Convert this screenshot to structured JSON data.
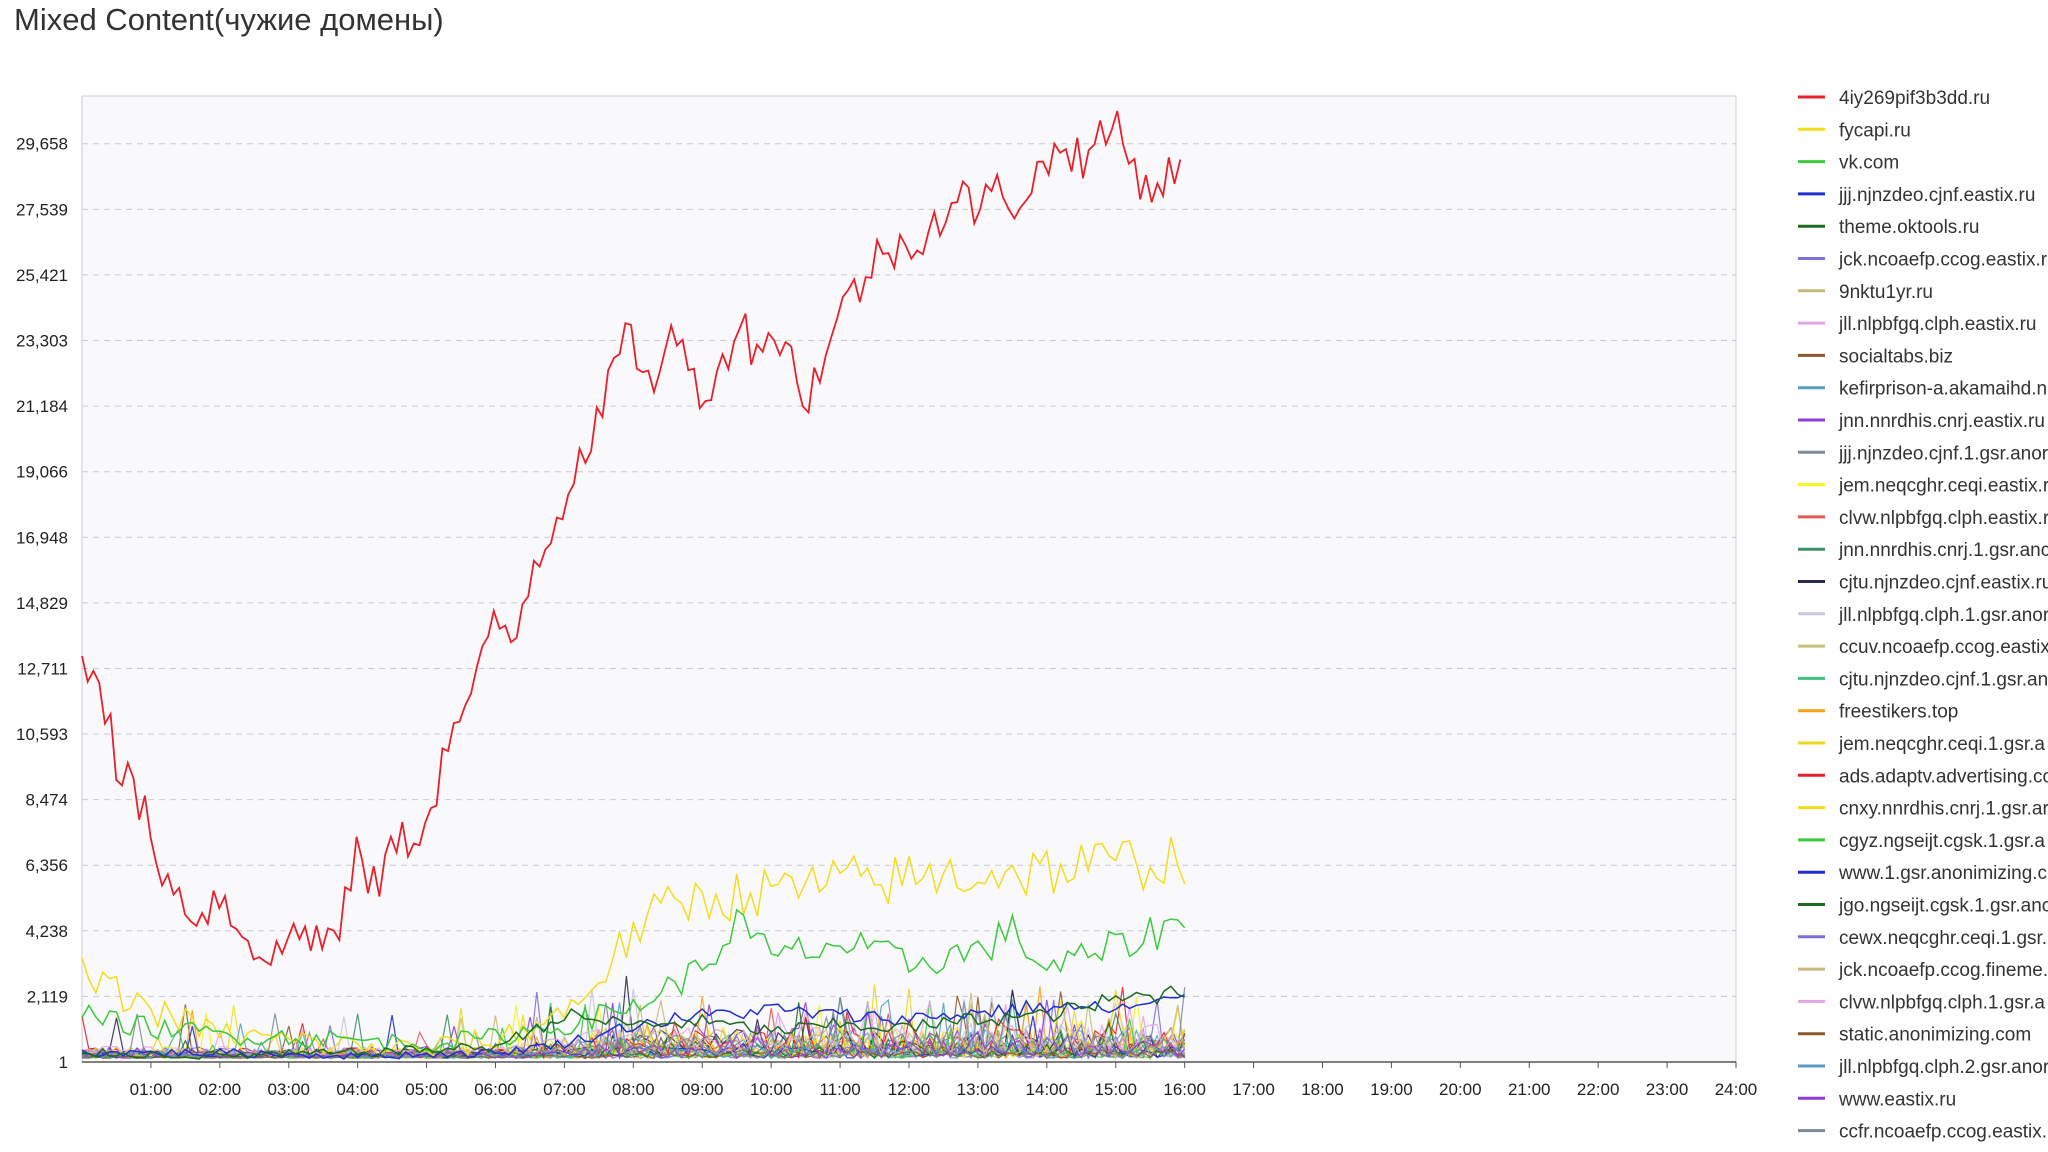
{
  "page": {
    "title": "Mixed Content(чужие домены)"
  },
  "chart_data": {
    "type": "line",
    "title": "Mixed Content(чужие домены)",
    "xlabel": "",
    "ylabel": "",
    "x_ticks": [
      "01:00",
      "02:00",
      "03:00",
      "04:00",
      "05:00",
      "06:00",
      "07:00",
      "08:00",
      "09:00",
      "10:00",
      "11:00",
      "12:00",
      "13:00",
      "14:00",
      "15:00",
      "16:00",
      "17:00",
      "18:00",
      "19:00",
      "20:00",
      "21:00",
      "22:00",
      "23:00",
      "24:00"
    ],
    "y_ticks": [
      "1",
      "2,119",
      "4,238",
      "6,356",
      "8,474",
      "10,593",
      "12,711",
      "14,829",
      "16,948",
      "19,066",
      "21,184",
      "23,303",
      "25,421",
      "27,539",
      "29,658"
    ],
    "xlim_hours": [
      0,
      24
    ],
    "ylim": [
      1,
      31200
    ],
    "grid": "horizontal dashed",
    "legend_position": "right",
    "main_series": {
      "name": "4iy269pif3b3dd.ru",
      "color": "#e8202a",
      "x": [
        0,
        0.25,
        0.5,
        0.75,
        1,
        1.25,
        1.5,
        1.75,
        2,
        2.25,
        2.5,
        2.75,
        3,
        3.25,
        3.5,
        3.75,
        4,
        4.25,
        4.5,
        4.75,
        5,
        5.25,
        5.5,
        5.75,
        6,
        6.25,
        6.5,
        6.75,
        7,
        7.25,
        7.5,
        7.75,
        8,
        8.25,
        8.5,
        8.75,
        9,
        9.25,
        9.5,
        9.75,
        10,
        10.25,
        10.5,
        10.75,
        11,
        11.25,
        11.5,
        11.75,
        12,
        12.25,
        12.5,
        12.75,
        13,
        13.25,
        13.5,
        13.75,
        14,
        14.25,
        14.5,
        14.75,
        15,
        15.25,
        15.5,
        15.75,
        16
      ],
      "y": [
        13000,
        12700,
        9500,
        8800,
        7400,
        5800,
        5100,
        4800,
        5400,
        4400,
        3900,
        3100,
        4100,
        4300,
        3900,
        4200,
        6900,
        5500,
        7000,
        7200,
        7800,
        9800,
        11300,
        12300,
        14400,
        13500,
        15800,
        17000,
        18200,
        19900,
        20500,
        22800,
        23400,
        21600,
        23700,
        22600,
        21700,
        22100,
        24100,
        23100,
        23600,
        22900,
        21400,
        22700,
        24200,
        25000,
        25900,
        26200,
        26500,
        26900,
        27400,
        27900,
        27600,
        28100,
        27800,
        28300,
        29000,
        29700,
        29200,
        29600,
        30400,
        28900,
        28200,
        28600,
        28900
      ]
    },
    "secondary_series": [
      {
        "name": "fycapi.ru",
        "color": "#f2dd1c",
        "x": [
          0,
          1,
          2,
          3,
          4,
          5,
          6,
          7,
          7.5,
          8,
          8.5,
          9,
          10,
          11,
          12,
          13,
          14,
          15,
          16
        ],
        "y": [
          2800,
          1700,
          900,
          700,
          500,
          400,
          700,
          1600,
          2700,
          4200,
          5000,
          5300,
          5500,
          5800,
          5900,
          6100,
          6200,
          6400,
          6600
        ]
      },
      {
        "name": "vk.com",
        "color": "#3cc93c",
        "x": [
          0,
          1,
          2,
          3,
          4,
          5,
          6,
          7,
          8,
          9,
          9.5,
          10,
          11,
          12,
          13,
          13.5,
          14,
          15,
          16
        ],
        "y": [
          1500,
          1100,
          900,
          800,
          700,
          600,
          800,
          1200,
          1800,
          3000,
          4500,
          3400,
          3800,
          3200,
          3600,
          4200,
          3000,
          3700,
          4600
        ]
      },
      {
        "name": "jjj.njnzdeo.cjnf.eastix.ru",
        "color": "#1f2ed1",
        "x": [
          0,
          2,
          4,
          6,
          7,
          8,
          9,
          10,
          11,
          12,
          13,
          14,
          15,
          16
        ],
        "y": [
          300,
          300,
          200,
          300,
          600,
          1200,
          1500,
          1700,
          1500,
          1400,
          1600,
          1800,
          1700,
          2000
        ]
      },
      {
        "name": "theme.oktools.ru",
        "color": "#1b6b22",
        "x": [
          0,
          2,
          4,
          6,
          7,
          8,
          9,
          10,
          11,
          12,
          13,
          14,
          15,
          16
        ],
        "y": [
          300,
          200,
          300,
          500,
          1500,
          1200,
          1300,
          1000,
          1200,
          1100,
          1400,
          1500,
          2000,
          2300
        ]
      }
    ],
    "legend": [
      {
        "name": "4iy269pif3b3dd.ru",
        "color": "#e8202a"
      },
      {
        "name": "fycapi.ru",
        "color": "#f2dd1c"
      },
      {
        "name": "vk.com",
        "color": "#3cc93c"
      },
      {
        "name": "jjj.njnzdeo.cjnf.eastix.ru",
        "color": "#1f2ed1"
      },
      {
        "name": "theme.oktools.ru",
        "color": "#1b6b22"
      },
      {
        "name": "jck.ncoaefp.ccog.eastix.r",
        "color": "#7f6fd6"
      },
      {
        "name": "9nktu1yr.ru",
        "color": "#c9b87d"
      },
      {
        "name": "jll.nlpbfgq.clph.eastix.ru",
        "color": "#e3a6e0"
      },
      {
        "name": "socialtabs.biz",
        "color": "#8a5a2b"
      },
      {
        "name": "kefirprison-a.akamaihd.n",
        "color": "#5a9fbf"
      },
      {
        "name": "jnn.nnrdhis.cnrj.eastix.ru",
        "color": "#8d3fd9"
      },
      {
        "name": "jjj.njnzdeo.cjnf.1.gsr.anor",
        "color": "#7f8a99"
      },
      {
        "name": "jem.neqcghr.ceqi.eastix.r",
        "color": "#f5f51c"
      },
      {
        "name": "clvw.nlpbfgq.clph.eastix.r",
        "color": "#e05a5a"
      },
      {
        "name": "jnn.nnrdhis.cnrj.1.gsr.anc",
        "color": "#3e8f66"
      },
      {
        "name": "cjtu.njnzdeo.cjnf.eastix.ru",
        "color": "#2b2b4f"
      },
      {
        "name": "jll.nlpbfgq.clph.1.gsr.anor",
        "color": "#c8c8d8"
      },
      {
        "name": "ccuv.ncoaefp.ccog.eastix",
        "color": "#c2c27a"
      },
      {
        "name": "cjtu.njnzdeo.cjnf.1.gsr.an",
        "color": "#3fbf7f"
      },
      {
        "name": "freestikers.top",
        "color": "#f5a21c"
      },
      {
        "name": "jem.neqcghr.ceqi.1.gsr.a",
        "color": "#e8d820"
      },
      {
        "name": "ads.adaptv.advertising.co",
        "color": "#e8202a"
      },
      {
        "name": "cnxy.nnrdhis.cnrj.1.gsr.ar",
        "color": "#f2dd1c"
      },
      {
        "name": "cgyz.ngseijt.cgsk.1.gsr.a",
        "color": "#3cc93c"
      },
      {
        "name": "www.1.gsr.anonimizing.c",
        "color": "#1f2ed1"
      },
      {
        "name": "jgo.ngseijt.cgsk.1.gsr.anc",
        "color": "#1b6b22"
      },
      {
        "name": "cewx.neqcghr.ceqi.1.gsr.",
        "color": "#7f6fd6"
      },
      {
        "name": "jck.ncoaefp.ccog.fineme.",
        "color": "#c9b87d"
      },
      {
        "name": "clvw.nlpbfgq.clph.1.gsr.a",
        "color": "#e3a6e0"
      },
      {
        "name": "static.anonimizing.com",
        "color": "#8a5a2b"
      },
      {
        "name": "jll.nlpbfgq.clph.2.gsr.anor",
        "color": "#5a9fbf"
      },
      {
        "name": "www.eastix.ru",
        "color": "#8d3fd9"
      },
      {
        "name": "ccfr.ncoaefp.ccog.eastix.",
        "color": "#7f8a99"
      }
    ]
  }
}
